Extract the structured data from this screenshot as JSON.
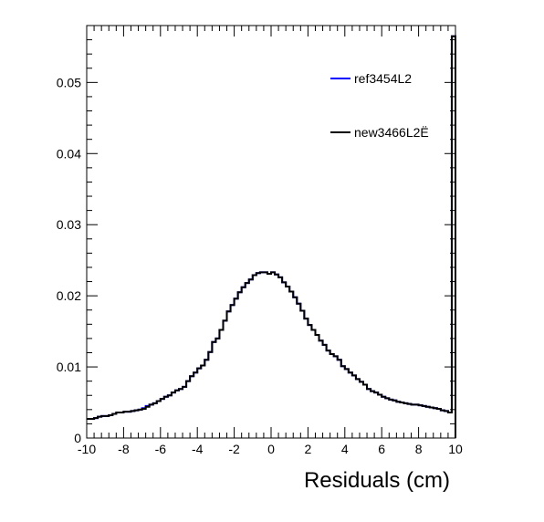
{
  "chart_data": {
    "type": "line",
    "title": "",
    "xlabel": "Residuals (cm)",
    "ylabel": "",
    "xlim": [
      -10,
      10
    ],
    "ylim": [
      0,
      0.058
    ],
    "x_ticks": [
      "-10",
      "-8",
      "-6",
      "-4",
      "-2",
      "0",
      "2",
      "4",
      "6",
      "8",
      "10"
    ],
    "y_ticks": [
      "0",
      "0.01",
      "0.02",
      "0.03",
      "0.04",
      "0.05"
    ],
    "grid": false,
    "legend_position": "top-right",
    "bin_width": 0.2,
    "series": [
      {
        "name": "ref3454L2",
        "color": "#0000ff",
        "draw_style": "step",
        "x": [
          -10.0,
          -9.8,
          -9.6,
          -9.4,
          -9.2,
          -9.0,
          -8.8,
          -8.6,
          -8.4,
          -8.2,
          -8.0,
          -7.8,
          -7.6,
          -7.4,
          -7.2,
          -7.0,
          -6.8,
          -6.6,
          -6.4,
          -6.2,
          -6.0,
          -5.8,
          -5.6,
          -5.4,
          -5.2,
          -5.0,
          -4.8,
          -4.6,
          -4.4,
          -4.2,
          -4.0,
          -3.8,
          -3.6,
          -3.4,
          -3.2,
          -3.0,
          -2.8,
          -2.6,
          -2.4,
          -2.2,
          -2.0,
          -1.8,
          -1.6,
          -1.4,
          -1.2,
          -1.0,
          -0.8,
          -0.6,
          -0.4,
          -0.2,
          0.0,
          0.2,
          0.4,
          0.6,
          0.8,
          1.0,
          1.2,
          1.4,
          1.6,
          1.8,
          2.0,
          2.2,
          2.4,
          2.6,
          2.8,
          3.0,
          3.2,
          3.4,
          3.6,
          3.8,
          4.0,
          4.2,
          4.4,
          4.6,
          4.8,
          5.0,
          5.2,
          5.4,
          5.6,
          5.8,
          6.0,
          6.2,
          6.4,
          6.6,
          6.8,
          7.0,
          7.2,
          7.4,
          7.6,
          7.8,
          8.0,
          8.2,
          8.4,
          8.6,
          8.8,
          9.0,
          9.2,
          9.4,
          9.6,
          9.8
        ],
        "y": [
          0.0027,
          0.0027,
          0.0028,
          0.003,
          0.0031,
          0.0031,
          0.0032,
          0.0034,
          0.0036,
          0.0036,
          0.0037,
          0.0037,
          0.0038,
          0.0039,
          0.004,
          0.0042,
          0.0045,
          0.0047,
          0.0049,
          0.0052,
          0.0055,
          0.0058,
          0.006,
          0.0064,
          0.0067,
          0.0069,
          0.0072,
          0.008,
          0.0087,
          0.0092,
          0.0098,
          0.0102,
          0.011,
          0.0121,
          0.0135,
          0.014,
          0.0152,
          0.0165,
          0.0178,
          0.0187,
          0.0196,
          0.0205,
          0.0212,
          0.0218,
          0.0223,
          0.0229,
          0.0232,
          0.0233,
          0.0233,
          0.0231,
          0.0233,
          0.023,
          0.0226,
          0.0219,
          0.0213,
          0.0206,
          0.0198,
          0.0189,
          0.0179,
          0.0168,
          0.0159,
          0.0152,
          0.0145,
          0.0137,
          0.0131,
          0.0123,
          0.0118,
          0.0115,
          0.011,
          0.0101,
          0.0097,
          0.0092,
          0.0088,
          0.0083,
          0.0079,
          0.0075,
          0.0069,
          0.0066,
          0.0064,
          0.0061,
          0.0058,
          0.0056,
          0.0054,
          0.0053,
          0.0051,
          0.005,
          0.0049,
          0.0048,
          0.0047,
          0.0047,
          0.0046,
          0.0045,
          0.0044,
          0.0043,
          0.0042,
          0.0041,
          0.0039,
          0.0038,
          0.0036,
          0.0565
        ]
      },
      {
        "name": "new3466L2Ë",
        "color": "#000000",
        "draw_style": "step",
        "x": [
          -10.0,
          -9.8,
          -9.6,
          -9.4,
          -9.2,
          -9.0,
          -8.8,
          -8.6,
          -8.4,
          -8.2,
          -8.0,
          -7.8,
          -7.6,
          -7.4,
          -7.2,
          -7.0,
          -6.8,
          -6.6,
          -6.4,
          -6.2,
          -6.0,
          -5.8,
          -5.6,
          -5.4,
          -5.2,
          -5.0,
          -4.8,
          -4.6,
          -4.4,
          -4.2,
          -4.0,
          -3.8,
          -3.6,
          -3.4,
          -3.2,
          -3.0,
          -2.8,
          -2.6,
          -2.4,
          -2.2,
          -2.0,
          -1.8,
          -1.6,
          -1.4,
          -1.2,
          -1.0,
          -0.8,
          -0.6,
          -0.4,
          -0.2,
          0.0,
          0.2,
          0.4,
          0.6,
          0.8,
          1.0,
          1.2,
          1.4,
          1.6,
          1.8,
          2.0,
          2.2,
          2.4,
          2.6,
          2.8,
          3.0,
          3.2,
          3.4,
          3.6,
          3.8,
          4.0,
          4.2,
          4.4,
          4.6,
          4.8,
          5.0,
          5.2,
          5.4,
          5.6,
          5.8,
          6.0,
          6.2,
          6.4,
          6.6,
          6.8,
          7.0,
          7.2,
          7.4,
          7.6,
          7.8,
          8.0,
          8.2,
          8.4,
          8.6,
          8.8,
          9.0,
          9.2,
          9.4,
          9.6,
          9.8
        ],
        "y": [
          0.0027,
          0.0027,
          0.0028,
          0.003,
          0.0031,
          0.0031,
          0.0032,
          0.0034,
          0.0036,
          0.0036,
          0.0037,
          0.0037,
          0.0038,
          0.0039,
          0.004,
          0.0041,
          0.0044,
          0.0047,
          0.0049,
          0.0052,
          0.0055,
          0.0058,
          0.006,
          0.0064,
          0.0067,
          0.0069,
          0.0072,
          0.008,
          0.0087,
          0.0092,
          0.0098,
          0.0102,
          0.011,
          0.0121,
          0.0135,
          0.014,
          0.0152,
          0.0165,
          0.0178,
          0.0187,
          0.0196,
          0.0205,
          0.0212,
          0.0218,
          0.0223,
          0.0229,
          0.0232,
          0.0233,
          0.0233,
          0.0231,
          0.0233,
          0.023,
          0.0226,
          0.0219,
          0.0213,
          0.0206,
          0.0198,
          0.0189,
          0.0179,
          0.0168,
          0.0159,
          0.0152,
          0.0145,
          0.0137,
          0.0131,
          0.0123,
          0.0118,
          0.0115,
          0.011,
          0.0101,
          0.0097,
          0.0092,
          0.0088,
          0.0083,
          0.0079,
          0.0075,
          0.0069,
          0.0066,
          0.0064,
          0.0061,
          0.0058,
          0.0056,
          0.0054,
          0.0053,
          0.0051,
          0.005,
          0.0049,
          0.0048,
          0.0047,
          0.0047,
          0.0046,
          0.0045,
          0.0044,
          0.0043,
          0.0042,
          0.0041,
          0.0039,
          0.0038,
          0.0036,
          0.0565
        ]
      }
    ]
  }
}
